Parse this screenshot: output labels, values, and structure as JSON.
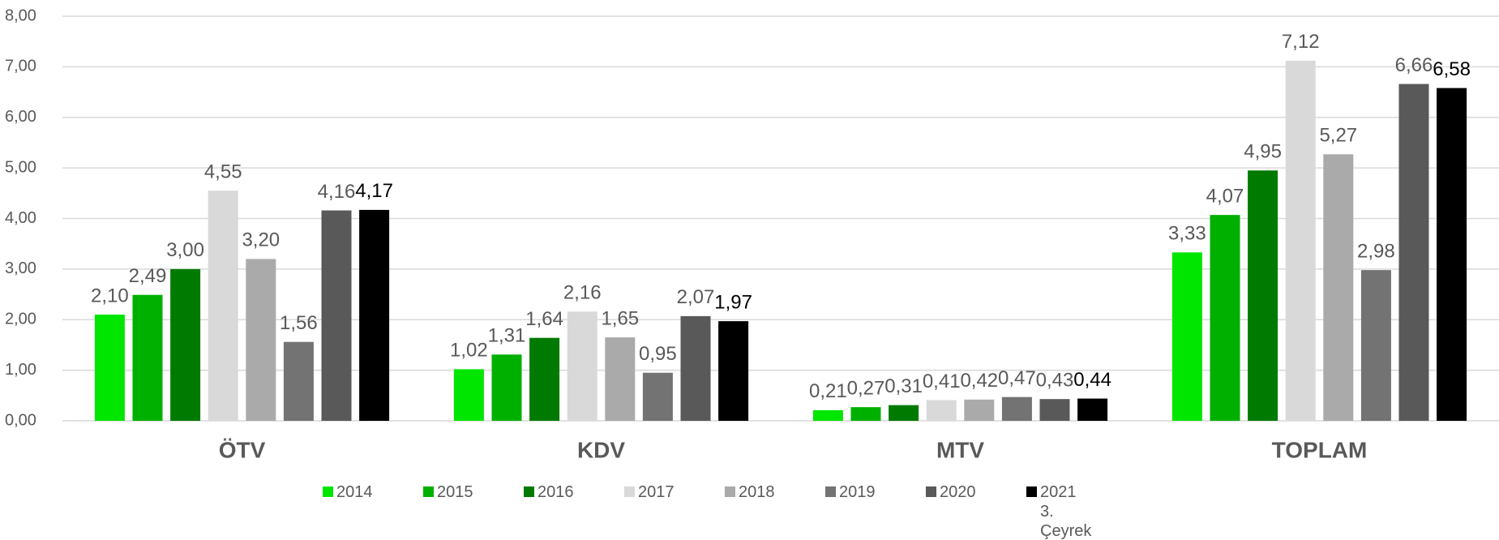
{
  "chart_data": {
    "type": "bar",
    "categories": [
      "ÖTV",
      "KDV",
      "MTV",
      "TOPLAM"
    ],
    "series": [
      {
        "name": "2014",
        "color": "#00e600",
        "values": [
          2.1,
          1.02,
          0.21,
          3.33
        ],
        "value_labels": [
          "2,10",
          "1,02",
          "0,21",
          "3,33"
        ]
      },
      {
        "name": "2015",
        "color": "#00b000",
        "values": [
          2.49,
          1.31,
          0.27,
          4.07
        ],
        "value_labels": [
          "2,49",
          "1,31",
          "0,27",
          "4,07"
        ]
      },
      {
        "name": "2016",
        "color": "#007a00",
        "values": [
          3.0,
          1.64,
          0.31,
          4.95
        ],
        "value_labels": [
          "3,00",
          "1,64",
          "0,31",
          "4,95"
        ]
      },
      {
        "name": "2017",
        "color": "#d9d9d9",
        "values": [
          4.55,
          2.16,
          0.41,
          7.12
        ],
        "value_labels": [
          "4,55",
          "2,16",
          "0,41",
          "7,12"
        ]
      },
      {
        "name": "2018",
        "color": "#aaaaaa",
        "values": [
          3.2,
          1.65,
          0.42,
          5.27
        ],
        "value_labels": [
          "3,20",
          "1,65",
          "0,42",
          "5,27"
        ]
      },
      {
        "name": "2019",
        "color": "#737373",
        "values": [
          1.56,
          0.95,
          0.47,
          2.98
        ],
        "value_labels": [
          "1,56",
          "0,95",
          "0,47",
          "2,98"
        ]
      },
      {
        "name": "2020",
        "color": "#595959",
        "values": [
          4.16,
          2.07,
          0.43,
          6.66
        ],
        "value_labels": [
          "4,16",
          "2,07",
          "0,43",
          "6,66"
        ]
      },
      {
        "name": "2021 3. Çeyrek",
        "color": "#000000",
        "values": [
          4.17,
          1.97,
          0.44,
          6.58
        ],
        "value_labels": [
          "4,17",
          "1,97",
          "0,44",
          "6,58"
        ]
      }
    ],
    "ylim": [
      0,
      8
    ],
    "yticks": [
      {
        "value": 0,
        "label": "0,00"
      },
      {
        "value": 1,
        "label": "1,00"
      },
      {
        "value": 2,
        "label": "2,00"
      },
      {
        "value": 3,
        "label": "3,00"
      },
      {
        "value": 4,
        "label": "4,00"
      },
      {
        "value": 5,
        "label": "5,00"
      },
      {
        "value": 6,
        "label": "6,00"
      },
      {
        "value": 7,
        "label": "7,00"
      },
      {
        "value": 8,
        "label": "8,00"
      }
    ],
    "grid": true
  }
}
